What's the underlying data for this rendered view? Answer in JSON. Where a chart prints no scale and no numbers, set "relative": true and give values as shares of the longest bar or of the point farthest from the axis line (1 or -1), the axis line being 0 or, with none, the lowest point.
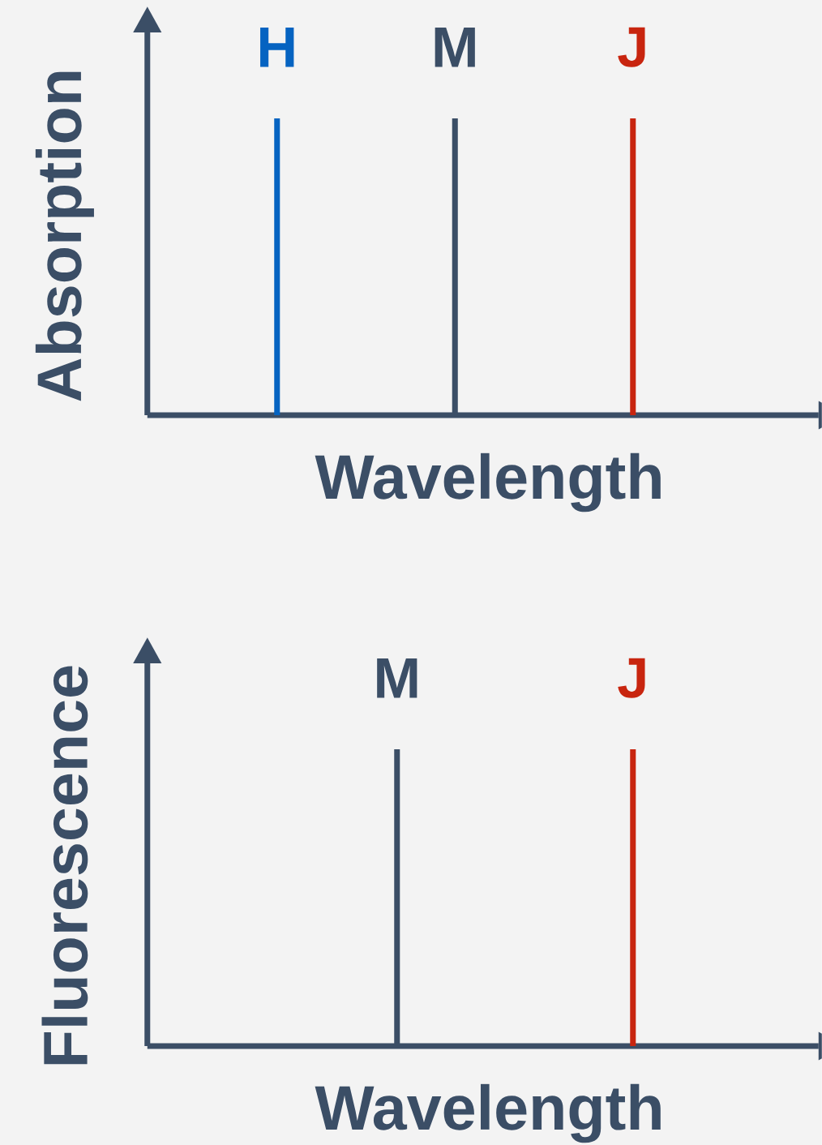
{
  "chart_data": [
    {
      "type": "bar",
      "relative": true,
      "ylabel": "Absorption",
      "xlabel": "Wavelength",
      "categories": [
        "H",
        "M",
        "J"
      ],
      "values": [
        1,
        1,
        1
      ],
      "colors": [
        "#0563c1",
        "#3b4e66",
        "#c8250f"
      ]
    },
    {
      "type": "bar",
      "relative": true,
      "ylabel": "Fluorescence",
      "xlabel": "Wavelength",
      "categories": [
        "M",
        "J"
      ],
      "values": [
        1,
        1
      ],
      "colors": [
        "#3b4e66",
        "#c8250f"
      ]
    }
  ]
}
